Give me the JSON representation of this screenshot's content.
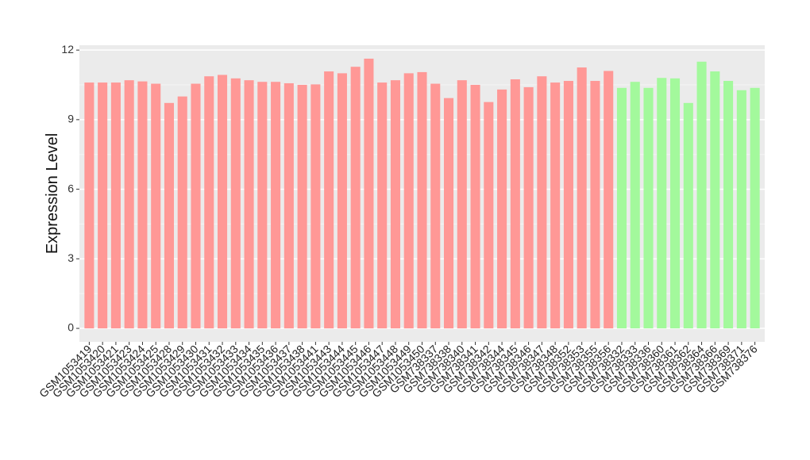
{
  "chart_data": {
    "type": "bar",
    "y_label": "Expression Level",
    "categories": [
      "GSM1053419",
      "GSM1053420",
      "GSM1053421",
      "GSM1053423",
      "GSM1053424",
      "GSM1053425",
      "GSM1053428",
      "GSM1053429",
      "GSM1053430",
      "GSM1053431",
      "GSM1053432",
      "GSM1053433",
      "GSM1053434",
      "GSM1053435",
      "GSM1053436",
      "GSM1053437",
      "GSM1053438",
      "GSM1053441",
      "GSM1053443",
      "GSM1053444",
      "GSM1053445",
      "GSM1053446",
      "GSM1053447",
      "GSM1053448",
      "GSM1053449",
      "GSM1053450",
      "GSM738337",
      "GSM738338",
      "GSM738340",
      "GSM738341",
      "GSM738342",
      "GSM738344",
      "GSM738345",
      "GSM738346",
      "GSM738347",
      "GSM738348",
      "GSM738352",
      "GSM738353",
      "GSM738355",
      "GSM738356",
      "GSM738332",
      "GSM738333",
      "GSM738336",
      "GSM738360",
      "GSM738361",
      "GSM738362",
      "GSM738364",
      "GSM738366",
      "GSM738369",
      "GSM738371",
      "GSM738376"
    ],
    "values": [
      10.6,
      10.6,
      10.6,
      10.7,
      10.65,
      10.55,
      9.72,
      10.0,
      10.55,
      10.87,
      10.93,
      10.78,
      10.7,
      10.63,
      10.63,
      10.57,
      10.5,
      10.52,
      11.08,
      11.0,
      11.28,
      11.63,
      10.6,
      10.7,
      11.0,
      11.05,
      10.55,
      9.93,
      10.7,
      10.5,
      9.76,
      10.3,
      10.74,
      10.4,
      10.87,
      10.6,
      10.67,
      11.25,
      10.67,
      11.1,
      10.37,
      10.63,
      10.37,
      10.8,
      10.78,
      9.72,
      11.5,
      11.08,
      10.67,
      10.27,
      10.37
    ],
    "colors": [
      "#ff9896",
      "#ff9896",
      "#ff9896",
      "#ff9896",
      "#ff9896",
      "#ff9896",
      "#ff9896",
      "#ff9896",
      "#ff9896",
      "#ff9896",
      "#ff9896",
      "#ff9896",
      "#ff9896",
      "#ff9896",
      "#ff9896",
      "#ff9896",
      "#ff9896",
      "#ff9896",
      "#ff9896",
      "#ff9896",
      "#ff9896",
      "#ff9896",
      "#ff9896",
      "#ff9896",
      "#ff9896",
      "#ff9896",
      "#ff9896",
      "#ff9896",
      "#ff9896",
      "#ff9896",
      "#ff9896",
      "#ff9896",
      "#ff9896",
      "#ff9896",
      "#ff9896",
      "#ff9896",
      "#ff9896",
      "#ff9896",
      "#ff9896",
      "#ff9896",
      "#a3f99c",
      "#a3f99c",
      "#a3f99c",
      "#a3f99c",
      "#a3f99c",
      "#a3f99c",
      "#a3f99c",
      "#a3f99c",
      "#a3f99c",
      "#a3f99c",
      "#a3f99c"
    ],
    "ylim": [
      -0.58,
      12.21
    ],
    "yticks": [
      0,
      3,
      6,
      9,
      12
    ],
    "grid": true
  }
}
